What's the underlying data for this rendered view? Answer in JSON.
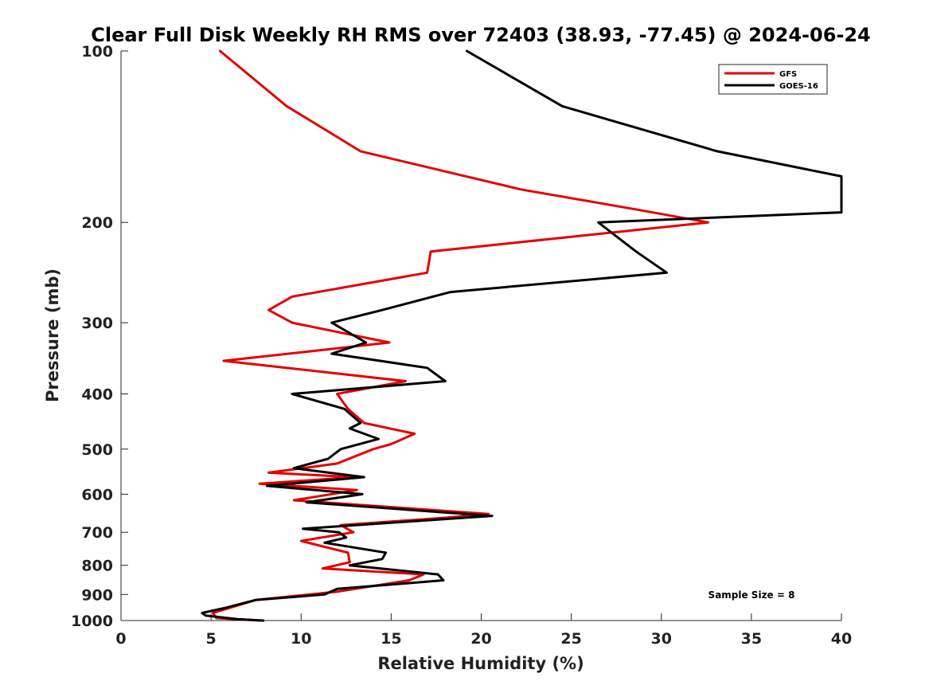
{
  "chart_data": {
    "type": "line",
    "title": "Clear Full Disk Weekly RH RMS over 72403 (38.93, -77.45) @ 2024-06-24",
    "xlabel": "Relative Humidity (%)",
    "ylabel": "Pressure (mb)",
    "xlim": [
      0,
      40
    ],
    "ylim": [
      100,
      1000
    ],
    "y_scale": "log",
    "y_reversed": true,
    "x_ticks": [
      0,
      5,
      10,
      15,
      20,
      25,
      30,
      35,
      40
    ],
    "y_ticks": [
      100,
      200,
      300,
      400,
      500,
      600,
      700,
      800,
      900,
      1000
    ],
    "grid": false,
    "legend_position": "top-right",
    "annotation": "Sample Size = 8",
    "series": [
      {
        "name": "GFS",
        "color": "#e60000",
        "points": [
          [
            5.5,
            100
          ],
          [
            9.2,
            125
          ],
          [
            13.3,
            150
          ],
          [
            22.2,
            175
          ],
          [
            28.7,
            190
          ],
          [
            32.6,
            200
          ],
          [
            17.2,
            225
          ],
          [
            17.0,
            245
          ],
          [
            9.5,
            270
          ],
          [
            8.2,
            285
          ],
          [
            9.5,
            300
          ],
          [
            14.9,
            325
          ],
          [
            5.7,
            350
          ],
          [
            15.8,
            380
          ],
          [
            12.0,
            400
          ],
          [
            12.6,
            425
          ],
          [
            13.5,
            450
          ],
          [
            16.3,
            470
          ],
          [
            15.0,
            490
          ],
          [
            14.0,
            500
          ],
          [
            12.0,
            530
          ],
          [
            8.2,
            550
          ],
          [
            13.0,
            560
          ],
          [
            7.7,
            575
          ],
          [
            13.1,
            590
          ],
          [
            9.6,
            615
          ],
          [
            20.4,
            650
          ],
          [
            18.0,
            660
          ],
          [
            12.2,
            680
          ],
          [
            12.9,
            700
          ],
          [
            10.0,
            725
          ],
          [
            12.6,
            760
          ],
          [
            12.7,
            790
          ],
          [
            11.2,
            810
          ],
          [
            16.8,
            830
          ],
          [
            16.0,
            850
          ],
          [
            12.0,
            890
          ],
          [
            7.5,
            920
          ],
          [
            5.1,
            970
          ],
          [
            5.3,
            990
          ],
          [
            7.7,
            1000
          ]
        ]
      },
      {
        "name": "GOES-16",
        "color": "#000000",
        "points": [
          [
            19.2,
            100
          ],
          [
            24.5,
            125
          ],
          [
            33.1,
            150
          ],
          [
            40.0,
            166
          ],
          [
            40.0,
            192
          ],
          [
            26.5,
            200
          ],
          [
            28.6,
            225
          ],
          [
            30.3,
            245
          ],
          [
            18.3,
            265
          ],
          [
            14.5,
            285
          ],
          [
            11.7,
            300
          ],
          [
            13.6,
            325
          ],
          [
            11.7,
            340
          ],
          [
            17.0,
            360
          ],
          [
            18.0,
            380
          ],
          [
            9.5,
            400
          ],
          [
            12.4,
            425
          ],
          [
            13.3,
            450
          ],
          [
            12.7,
            460
          ],
          [
            14.3,
            480
          ],
          [
            12.2,
            500
          ],
          [
            11.5,
            520
          ],
          [
            9.6,
            540
          ],
          [
            13.5,
            560
          ],
          [
            8.1,
            580
          ],
          [
            13.4,
            600
          ],
          [
            10.3,
            620
          ],
          [
            20.6,
            655
          ],
          [
            10.1,
            690
          ],
          [
            12.1,
            700
          ],
          [
            12.5,
            715
          ],
          [
            11.3,
            730
          ],
          [
            14.7,
            760
          ],
          [
            14.5,
            780
          ],
          [
            12.7,
            800
          ],
          [
            17.6,
            830
          ],
          [
            17.9,
            850
          ],
          [
            12.0,
            880
          ],
          [
            11.3,
            900
          ],
          [
            7.5,
            920
          ],
          [
            5.8,
            950
          ],
          [
            4.5,
            970
          ],
          [
            4.7,
            980
          ],
          [
            6.5,
            995
          ],
          [
            7.9,
            1000
          ]
        ]
      }
    ]
  }
}
